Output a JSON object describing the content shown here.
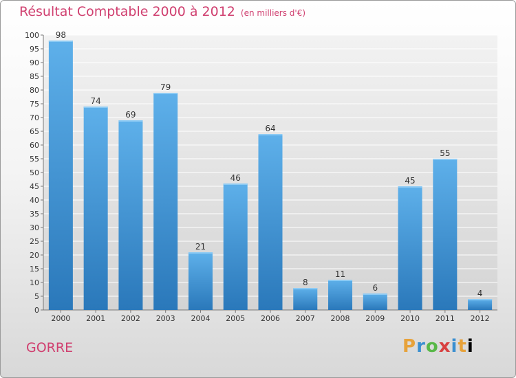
{
  "title": "Résultat Comptable 2000 à 2012",
  "subtitle": "(en milliers d'€)",
  "place": "GORRE",
  "logo": {
    "letters": [
      "P",
      "r",
      "o",
      "x",
      "i",
      "t",
      "i"
    ],
    "text": "Proxiti"
  },
  "colors": {
    "accent": "#d04070",
    "bar_top": "#5eb0ea",
    "bar_bottom": "#2a78ba"
  },
  "chart_data": {
    "type": "bar",
    "title": "Résultat Comptable 2000 à 2012",
    "subtitle": "(en milliers d'€)",
    "xlabel": "",
    "ylabel": "",
    "categories": [
      "2000",
      "2001",
      "2002",
      "2003",
      "2004",
      "2005",
      "2006",
      "2007",
      "2008",
      "2009",
      "2010",
      "2011",
      "2012"
    ],
    "values": [
      98,
      74,
      69,
      79,
      21,
      46,
      64,
      8,
      11,
      6,
      45,
      55,
      4
    ],
    "ylim": [
      0,
      100
    ],
    "yticks": [
      0,
      5,
      10,
      15,
      20,
      25,
      30,
      35,
      40,
      45,
      50,
      55,
      60,
      65,
      70,
      75,
      80,
      85,
      90,
      95,
      100
    ],
    "grid": true
  }
}
